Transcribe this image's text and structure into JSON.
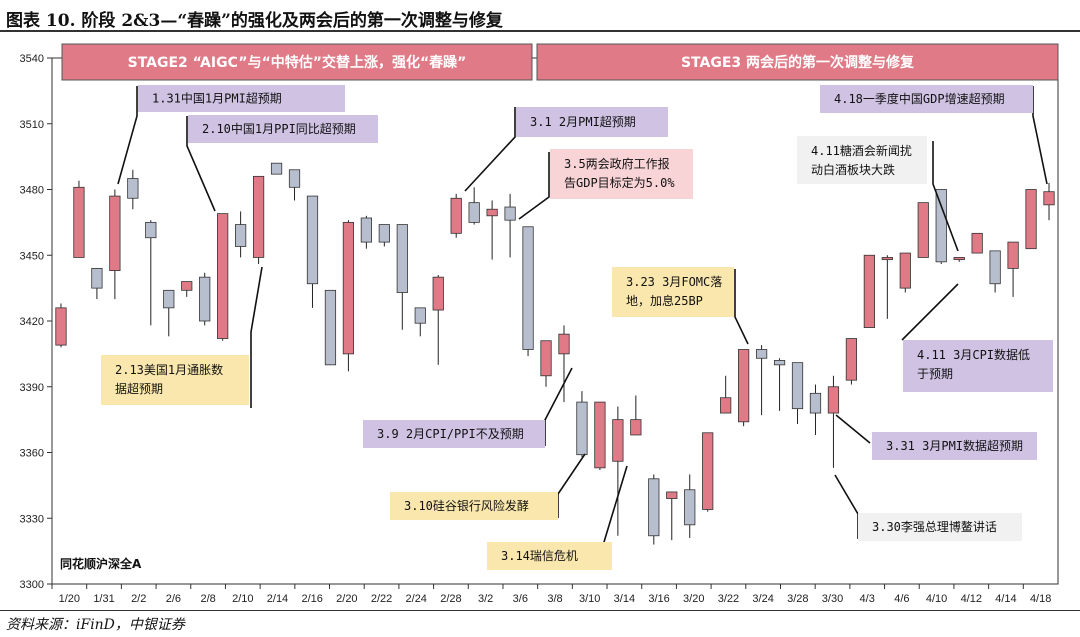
{
  "figure_title": "图表 10. 阶段 2&3—“春躁”的强化及两会后的第一次调整与修复",
  "source": "资料来源：iFinD，中银证券",
  "colors": {
    "up": "#e07a87",
    "down": "#b7bfcf",
    "stage": "#e07a87",
    "purple": "#cfc2e3",
    "yellow": "#fae7ad",
    "pink": "#f8d4d7",
    "gray": "#f1f1f1"
  },
  "chart_data": {
    "type": "candlestick",
    "series_label": "同花顺沪深全A",
    "ylim": [
      3300,
      3540
    ],
    "yticks": [
      3300,
      3330,
      3360,
      3390,
      3420,
      3450,
      3480,
      3510,
      3540
    ],
    "xtick_labels": [
      "1/20",
      "1/31",
      "2/2",
      "2/6",
      "2/8",
      "2/10",
      "2/14",
      "2/16",
      "2/20",
      "2/22",
      "2/24",
      "2/28",
      "3/2",
      "3/6",
      "3/8",
      "3/10",
      "3/14",
      "3/16",
      "3/20",
      "3/22",
      "3/24",
      "3/28",
      "3/30",
      "4/3",
      "4/6",
      "4/10",
      "4/12",
      "4/14",
      "4/18"
    ],
    "candles": [
      {
        "open": 3409,
        "close": 3426,
        "high": 3428,
        "low": 3408
      },
      {
        "open": 3449,
        "close": 3481,
        "high": 3484,
        "low": 3449
      },
      {
        "open": 3444,
        "close": 3435,
        "high": 3444,
        "low": 3430
      },
      {
        "open": 3443,
        "close": 3477,
        "high": 3480,
        "low": 3430
      },
      {
        "open": 3485,
        "close": 3476,
        "high": 3489,
        "low": 3471
      },
      {
        "open": 3465,
        "close": 3458,
        "high": 3466,
        "low": 3418
      },
      {
        "open": 3434,
        "close": 3426,
        "high": 3434,
        "low": 3413
      },
      {
        "open": 3434,
        "close": 3438,
        "high": 3438,
        "low": 3431
      },
      {
        "open": 3440,
        "close": 3420,
        "high": 3442,
        "low": 3418
      },
      {
        "open": 3412,
        "close": 3469,
        "high": 3469,
        "low": 3411
      },
      {
        "open": 3464,
        "close": 3454,
        "high": 3470,
        "low": 3449
      },
      {
        "open": 3449,
        "close": 3486,
        "high": 3486,
        "low": 3446
      },
      {
        "open": 3492,
        "close": 3487,
        "high": 3492,
        "low": 3488
      },
      {
        "open": 3489,
        "close": 3481,
        "high": 3489,
        "low": 3475
      },
      {
        "open": 3477,
        "close": 3437,
        "high": 3477,
        "low": 3426
      },
      {
        "open": 3434,
        "close": 3400,
        "high": 3434,
        "low": 3400
      },
      {
        "open": 3405,
        "close": 3465,
        "high": 3466,
        "low": 3397
      },
      {
        "open": 3467,
        "close": 3456,
        "high": 3468,
        "low": 3453
      },
      {
        "open": 3464,
        "close": 3456,
        "high": 3464,
        "low": 3454
      },
      {
        "open": 3464,
        "close": 3433,
        "high": 3464,
        "low": 3416
      },
      {
        "open": 3426,
        "close": 3419,
        "high": 3426,
        "low": 3413
      },
      {
        "open": 3425,
        "close": 3440,
        "high": 3441,
        "low": 3400
      },
      {
        "open": 3460,
        "close": 3476,
        "high": 3478,
        "low": 3458
      },
      {
        "open": 3474,
        "close": 3465,
        "high": 3481,
        "low": 3464
      },
      {
        "open": 3468,
        "close": 3471,
        "high": 3475,
        "low": 3448
      },
      {
        "open": 3472,
        "close": 3466,
        "high": 3478,
        "low": 3449
      },
      {
        "open": 3463,
        "close": 3407,
        "high": 3463,
        "low": 3404
      },
      {
        "open": 3395,
        "close": 3411,
        "high": 3411,
        "low": 3390
      },
      {
        "open": 3405,
        "close": 3414,
        "high": 3418,
        "low": 3383
      },
      {
        "open": 3383,
        "close": 3359,
        "high": 3388,
        "low": 3358
      },
      {
        "open": 3353,
        "close": 3383,
        "high": 3383,
        "low": 3352
      },
      {
        "open": 3356,
        "close": 3375,
        "high": 3381,
        "low": 3322
      },
      {
        "open": 3368,
        "close": 3375,
        "high": 3386,
        "low": 3368
      },
      {
        "open": 3348,
        "close": 3322,
        "high": 3350,
        "low": 3318
      },
      {
        "open": 3339,
        "close": 3342,
        "high": 3342,
        "low": 3320
      },
      {
        "open": 3343,
        "close": 3327,
        "high": 3350,
        "low": 3321
      },
      {
        "open": 3334,
        "close": 3369,
        "high": 3369,
        "low": 3333
      },
      {
        "open": 3378,
        "close": 3385,
        "high": 3395,
        "low": 3378
      },
      {
        "open": 3374,
        "close": 3407,
        "high": 3407,
        "low": 3372
      },
      {
        "open": 3407,
        "close": 3403,
        "high": 3409,
        "low": 3377
      },
      {
        "open": 3402,
        "close": 3400,
        "high": 3403,
        "low": 3379
      },
      {
        "open": 3401,
        "close": 3380,
        "high": 3401,
        "low": 3373
      },
      {
        "open": 3387,
        "close": 3378,
        "high": 3391,
        "low": 3368
      },
      {
        "open": 3378,
        "close": 3390,
        "high": 3395,
        "low": 3353
      },
      {
        "open": 3393,
        "close": 3412,
        "high": 3412,
        "low": 3391
      },
      {
        "open": 3417,
        "close": 3450,
        "high": 3450,
        "low": 3417
      },
      {
        "open": 3448,
        "close": 3449,
        "high": 3450,
        "low": 3421
      },
      {
        "open": 3435,
        "close": 3451,
        "high": 3451,
        "low": 3433
      },
      {
        "open": 3449,
        "close": 3474,
        "high": 3474,
        "low": 3449
      },
      {
        "open": 3480,
        "close": 3447,
        "high": 3480,
        "low": 3446
      },
      {
        "open": 3448,
        "close": 3449,
        "high": 3449,
        "low": 3447
      },
      {
        "open": 3451,
        "close": 3460,
        "high": 3460,
        "low": 3451
      },
      {
        "open": 3452,
        "close": 3437,
        "high": 3452,
        "low": 3433
      },
      {
        "open": 3444,
        "close": 3456,
        "high": 3456,
        "low": 3431
      },
      {
        "open": 3453,
        "close": 3480,
        "high": 3480,
        "low": 3453
      },
      {
        "open": 3473,
        "close": 3479,
        "high": 3483,
        "low": 3466
      }
    ]
  },
  "stages": [
    {
      "label": "STAGE2    “AIGC”与“中特估”交替上涨，强化“春躁”"
    },
    {
      "label": "STAGE3   两会后的第一次调整与修复"
    }
  ],
  "annotations": [
    {
      "lines": [
        "1.31中国1月PMI超预期"
      ],
      "style": "purple"
    },
    {
      "lines": [
        "2.10中国1月PPI同比超预期"
      ],
      "style": "purple"
    },
    {
      "lines": [
        "3.1 2月PMI超预期"
      ],
      "style": "purple"
    },
    {
      "lines": [
        "3.5两会政府工作报",
        "告GDP目标定为5.0%"
      ],
      "style": "pink"
    },
    {
      "lines": [
        "4.18一季度中国GDP增速超预期"
      ],
      "style": "purple"
    },
    {
      "lines": [
        "4.11糖酒会新闻扰",
        "动白酒板块大跌"
      ],
      "style": "gray"
    },
    {
      "lines": [
        "3.23 3月FOMC落",
        "地，加息25BP"
      ],
      "style": "yellow"
    },
    {
      "lines": [
        "2.13美国1月通胀数",
        "据超预期"
      ],
      "style": "yellow"
    },
    {
      "lines": [
        "4.11 3月CPI数据低",
        "于预期"
      ],
      "style": "purple"
    },
    {
      "lines": [
        "3.9 2月CPI/PPI不及预期"
      ],
      "style": "purple"
    },
    {
      "lines": [
        "3.31 3月PMI数据超预期"
      ],
      "style": "purple"
    },
    {
      "lines": [
        "3.10硅谷银行风险发酵"
      ],
      "style": "yellow"
    },
    {
      "lines": [
        "3.30李强总理博鳌讲话"
      ],
      "style": "gray"
    },
    {
      "lines": [
        "3.14瑞信危机"
      ],
      "style": "yellow"
    }
  ]
}
